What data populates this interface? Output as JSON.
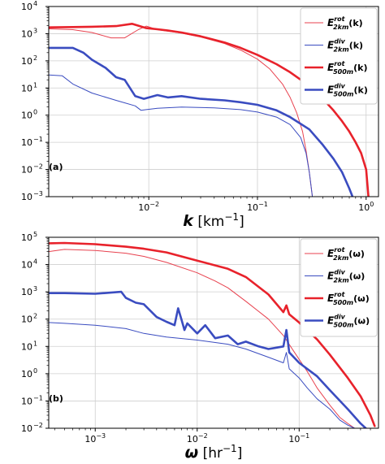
{
  "chart_data": [
    {
      "type": "line",
      "panel_label": "(a)",
      "xlabel_symbol": "k",
      "xlabel_unit": " [km",
      "xlabel_exp": "−1",
      "xlabel_close": "]",
      "xscale": "log",
      "yscale": "log",
      "xlim": [
        0.0012,
        1.3
      ],
      "ylim": [
        0.001,
        10000
      ],
      "grid": true,
      "legend_position": "top-right",
      "x_ticks": [
        {
          "value": 0.01,
          "base": "10",
          "exp": "−2"
        },
        {
          "value": 0.1,
          "base": "10",
          "exp": "−1"
        },
        {
          "value": 1,
          "base": "10",
          "exp": "0"
        }
      ],
      "y_ticks": [
        {
          "value": 0.001,
          "base": "10",
          "exp": "−3"
        },
        {
          "value": 0.01,
          "base": "10",
          "exp": "−2"
        },
        {
          "value": 0.1,
          "base": "10",
          "exp": "−1"
        },
        {
          "value": 1,
          "base": "10",
          "exp": "0"
        },
        {
          "value": 10,
          "base": "10",
          "exp": "1"
        },
        {
          "value": 100,
          "base": "10",
          "exp": "2"
        },
        {
          "value": 1000,
          "base": "10",
          "exp": "3"
        },
        {
          "value": 10000,
          "base": "10",
          "exp": "4"
        }
      ],
      "series": [
        {
          "legend_main": "E",
          "legend_sup": "rot",
          "legend_sub": "2km",
          "legend_arg": "(k)",
          "color": "#e8424f",
          "width": 1.0,
          "x": [
            0.0012,
            0.002,
            0.003,
            0.0045,
            0.006,
            0.008,
            0.0095,
            0.012,
            0.015,
            0.02,
            0.03,
            0.05,
            0.07,
            0.1,
            0.13,
            0.17,
            0.2,
            0.23,
            0.26,
            0.28,
            0.3,
            0.32
          ],
          "y": [
            1500,
            1400,
            1100,
            700,
            700,
            1400,
            1900,
            1400,
            1250,
            1050,
            760,
            430,
            250,
            115,
            50,
            14,
            4.5,
            1.2,
            0.25,
            0.05,
            0.008,
            0.001
          ]
        },
        {
          "legend_main": "E",
          "legend_sup": "div",
          "legend_sub": "2km",
          "legend_arg": "(k)",
          "color": "#3a4cc0",
          "width": 1.0,
          "x": [
            0.0012,
            0.0016,
            0.002,
            0.003,
            0.005,
            0.0075,
            0.0085,
            0.0095,
            0.012,
            0.02,
            0.04,
            0.07,
            0.1,
            0.15,
            0.2,
            0.25,
            0.28,
            0.3,
            0.32
          ],
          "y": [
            30,
            28,
            14,
            6.5,
            3.5,
            2.2,
            1.5,
            1.6,
            1.8,
            2.0,
            1.85,
            1.6,
            1.3,
            0.85,
            0.45,
            0.15,
            0.04,
            0.008,
            0.001
          ]
        },
        {
          "legend_main": "E",
          "legend_sup": "rot",
          "legend_sub": "500m",
          "legend_arg": "(k)",
          "color": "#e8222b",
          "width": 2.6,
          "x": [
            0.0012,
            0.002,
            0.003,
            0.005,
            0.007,
            0.0095,
            0.012,
            0.015,
            0.02,
            0.03,
            0.05,
            0.07,
            0.1,
            0.15,
            0.2,
            0.3,
            0.4,
            0.5,
            0.6,
            0.7,
            0.8,
            0.9,
            1.0,
            1.05
          ],
          "y": [
            1700,
            1750,
            1800,
            1900,
            2300,
            1600,
            1450,
            1300,
            1100,
            800,
            470,
            300,
            165,
            75,
            38,
            12,
            4.0,
            1.5,
            0.6,
            0.25,
            0.1,
            0.04,
            0.01,
            0.001
          ]
        },
        {
          "legend_main": "E",
          "legend_sup": "div",
          "legend_sub": "500m",
          "legend_arg": "(k)",
          "color": "#3a4cc0",
          "width": 2.6,
          "x": [
            0.0012,
            0.002,
            0.0025,
            0.003,
            0.004,
            0.005,
            0.006,
            0.0075,
            0.009,
            0.012,
            0.015,
            0.02,
            0.03,
            0.05,
            0.07,
            0.1,
            0.15,
            0.2,
            0.3,
            0.4,
            0.5,
            0.6,
            0.7,
            0.75
          ],
          "y": [
            300,
            300,
            200,
            110,
            55,
            25,
            20,
            5,
            4,
            5.5,
            4.5,
            5.0,
            4.0,
            3.5,
            3.0,
            2.4,
            1.5,
            0.85,
            0.3,
            0.08,
            0.025,
            0.008,
            0.002,
            0.001
          ]
        }
      ]
    },
    {
      "type": "line",
      "panel_label": "(b)",
      "xlabel_symbol": "ω",
      "xlabel_unit": " [hr",
      "xlabel_exp": "−1",
      "xlabel_close": "]",
      "xscale": "log",
      "yscale": "log",
      "xlim": [
        0.00035,
        0.6
      ],
      "ylim": [
        0.01,
        100000
      ],
      "grid": true,
      "legend_position": "top-right",
      "x_ticks": [
        {
          "value": 0.001,
          "base": "10",
          "exp": "−3"
        },
        {
          "value": 0.01,
          "base": "10",
          "exp": "−2"
        },
        {
          "value": 0.1,
          "base": "10",
          "exp": "−1"
        }
      ],
      "y_ticks": [
        {
          "value": 0.01,
          "base": "10",
          "exp": "−2"
        },
        {
          "value": 0.1,
          "base": "10",
          "exp": "−1"
        },
        {
          "value": 1,
          "base": "10",
          "exp": "0"
        },
        {
          "value": 10,
          "base": "10",
          "exp": "1"
        },
        {
          "value": 100,
          "base": "10",
          "exp": "2"
        },
        {
          "value": 1000,
          "base": "10",
          "exp": "3"
        },
        {
          "value": 10000,
          "base": "10",
          "exp": "4"
        },
        {
          "value": 100000,
          "base": "10",
          "exp": "5"
        }
      ],
      "series": [
        {
          "legend_main": "E",
          "legend_sup": "rot",
          "legend_sub": "2km",
          "legend_arg": "(ω)",
          "color": "#e8424f",
          "width": 1.0,
          "x": [
            0.00035,
            0.0005,
            0.001,
            0.002,
            0.003,
            0.005,
            0.01,
            0.015,
            0.02,
            0.03,
            0.05,
            0.07,
            0.09,
            0.12,
            0.15,
            0.2,
            0.25,
            0.3,
            0.35
          ],
          "y": [
            30000,
            36000,
            33000,
            26000,
            20000,
            12000,
            5000,
            2500,
            1400,
            450,
            100,
            25,
            6,
            1.2,
            0.3,
            0.07,
            0.025,
            0.015,
            0.01
          ]
        },
        {
          "legend_main": "E",
          "legend_sup": "div",
          "legend_sub": "2km",
          "legend_arg": "(ω)",
          "color": "#3a4cc0",
          "width": 1.0,
          "x": [
            0.00035,
            0.0005,
            0.001,
            0.002,
            0.003,
            0.005,
            0.01,
            0.02,
            0.03,
            0.05,
            0.07,
            0.075,
            0.08,
            0.1,
            0.12,
            0.15,
            0.2,
            0.25,
            0.3,
            0.35
          ],
          "y": [
            75,
            70,
            60,
            45,
            30,
            22,
            17,
            12,
            8,
            4,
            2.5,
            6,
            1.5,
            0.7,
            0.3,
            0.12,
            0.05,
            0.02,
            0.013,
            0.01
          ]
        },
        {
          "legend_main": "E",
          "legend_sup": "rot",
          "legend_sub": "500m",
          "legend_arg": "(ω)",
          "color": "#e8222b",
          "width": 2.6,
          "x": [
            0.00035,
            0.0005,
            0.001,
            0.002,
            0.003,
            0.005,
            0.01,
            0.02,
            0.03,
            0.05,
            0.07,
            0.075,
            0.08,
            0.1,
            0.15,
            0.2,
            0.3,
            0.4,
            0.5,
            0.55
          ],
          "y": [
            60000,
            62000,
            56000,
            45000,
            38000,
            28000,
            14000,
            7000,
            3500,
            800,
            180,
            320,
            150,
            75,
            18,
            5,
            0.7,
            0.15,
            0.03,
            0.012
          ]
        },
        {
          "legend_main": "E",
          "legend_sup": "div",
          "legend_sub": "500m",
          "legend_arg": "(ω)",
          "color": "#3a4cc0",
          "width": 2.6,
          "x": [
            0.00035,
            0.0005,
            0.001,
            0.0018,
            0.002,
            0.0025,
            0.003,
            0.004,
            0.005,
            0.006,
            0.0065,
            0.007,
            0.0075,
            0.008,
            0.01,
            0.012,
            0.015,
            0.02,
            0.025,
            0.03,
            0.04,
            0.05,
            0.06,
            0.07,
            0.075,
            0.08,
            0.1,
            0.15,
            0.2,
            0.3,
            0.4,
            0.45
          ],
          "y": [
            900,
            900,
            850,
            1000,
            600,
            400,
            350,
            120,
            80,
            60,
            250,
            100,
            40,
            70,
            30,
            60,
            20,
            25,
            12,
            15,
            10,
            8,
            9,
            10,
            40,
            6,
            2.5,
            0.8,
            0.25,
            0.05,
            0.015,
            0.01
          ]
        }
      ]
    }
  ]
}
